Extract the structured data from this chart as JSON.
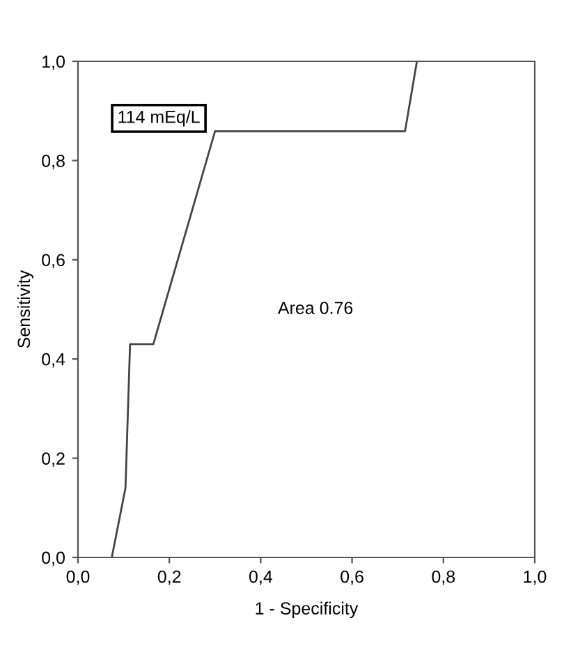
{
  "chart_data": {
    "type": "line",
    "xlabel": "1 - Specificity",
    "ylabel": "Sensitivity",
    "x": [
      0.074,
      0.104,
      0.114,
      0.165,
      0.3,
      0.716,
      0.742
    ],
    "series": [
      {
        "color": "#444444",
        "values": [
          0.0,
          0.14,
          0.43,
          0.43,
          0.859,
          0.859,
          1.0
        ]
      }
    ],
    "xlim": [
      0,
      1
    ],
    "ylim": [
      0,
      1
    ],
    "xticks": [
      {
        "value": 0,
        "label": "0,0"
      },
      {
        "value": 0.2,
        "label": "0,2"
      },
      {
        "value": 0.4,
        "label": "0,4"
      },
      {
        "value": 0.6,
        "label": "0,6"
      },
      {
        "value": 0.8,
        "label": "0,8"
      },
      {
        "value": 1,
        "label": "1,0"
      }
    ],
    "yticks": [
      {
        "value": 0,
        "label": "0,0"
      },
      {
        "value": 0.2,
        "label": "0,2"
      },
      {
        "value": 0.4,
        "label": "0,4"
      },
      {
        "value": 0.6,
        "label": "0,6"
      },
      {
        "value": 0.8,
        "label": "0,8"
      },
      {
        "value": 1,
        "label": "1,0"
      }
    ],
    "annotations": [
      "114 mEq/L",
      "Area 0.76"
    ],
    "grid": false,
    "legend": false,
    "marker": "none",
    "line_style": "solid"
  }
}
